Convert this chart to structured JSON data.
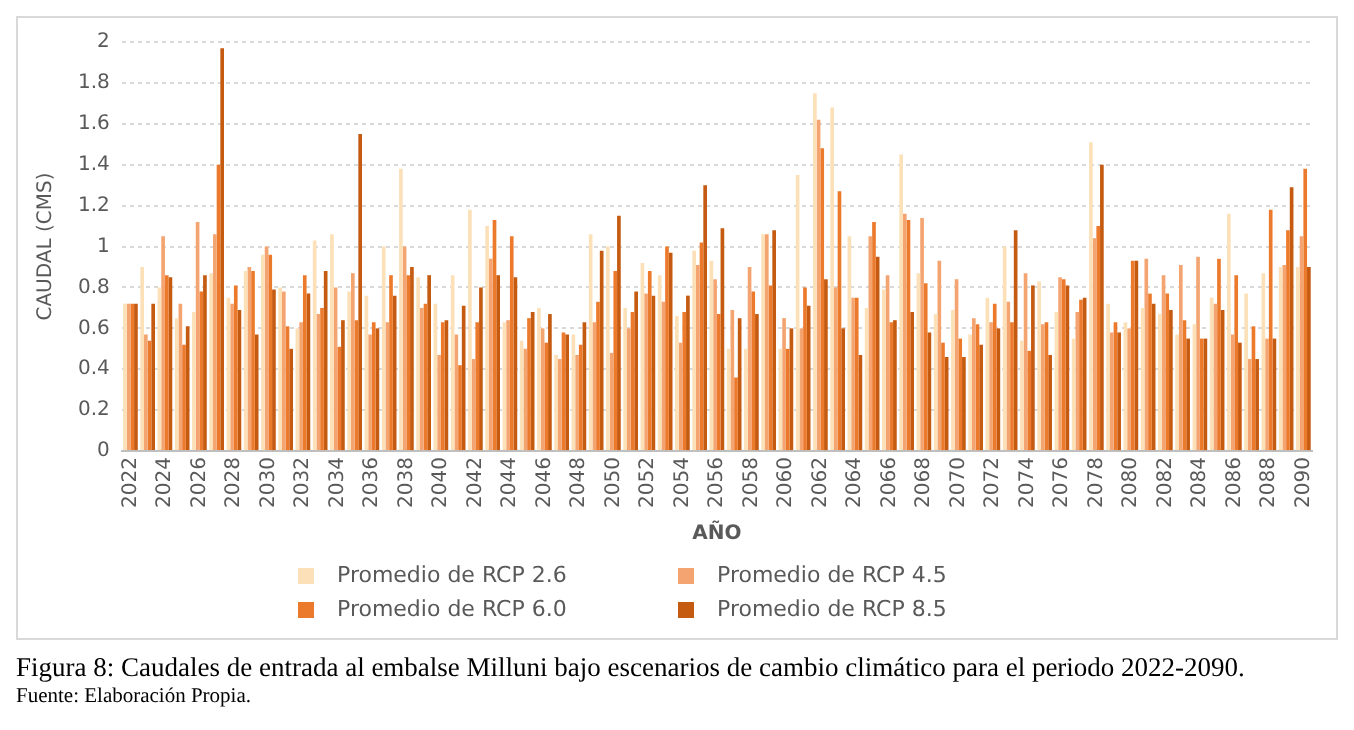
{
  "chart_data": {
    "type": "bar",
    "xlabel": "AÑO",
    "ylabel": "CAUDAL (CMS)",
    "categories": [
      "2022",
      null,
      "2024",
      null,
      "2026",
      null,
      "2028",
      null,
      "2030",
      null,
      "2032",
      null,
      "2034",
      null,
      "2036",
      null,
      "2038",
      null,
      "2040",
      null,
      "2042",
      null,
      "2044",
      null,
      "2046",
      null,
      "2048",
      null,
      "2050",
      null,
      "2052",
      null,
      "2054",
      null,
      "2056",
      null,
      "2058",
      null,
      "2060",
      null,
      "2062",
      null,
      "2064",
      null,
      "2066",
      null,
      "2068",
      null,
      "2070",
      null,
      "2072",
      null,
      "2074",
      null,
      "2076",
      null,
      "2078",
      null,
      "2080",
      null,
      "2082",
      null,
      "2084",
      null,
      "2086",
      null,
      "2088",
      null,
      "2090"
    ],
    "series": [
      {
        "name": "Promedio de RCP 2.6",
        "color": "#fbe0b8",
        "values": [
          0.72,
          0.9,
          0.8,
          0.65,
          0.68,
          0.87,
          0.75,
          0.88,
          0.96,
          0.8,
          0.6,
          1.03,
          1.06,
          0.78,
          0.76,
          1.0,
          1.38,
          0.85,
          0.72,
          0.86,
          1.18,
          1.1,
          0.63,
          0.54,
          0.7,
          0.47,
          0.57,
          1.06,
          1.0,
          0.7,
          0.92,
          0.86,
          0.66,
          0.98,
          0.93,
          0.5,
          0.5,
          1.06,
          0.5,
          1.35,
          1.75,
          1.68,
          1.05,
          0.7,
          0.79,
          1.45,
          0.87,
          0.67,
          0.69,
          0.57,
          0.75,
          1.0,
          0.54,
          0.83,
          0.68,
          0.55,
          1.51,
          0.72,
          0.63,
          0.7,
          0.67,
          0.57,
          0.62,
          0.75,
          1.16,
          0.77,
          0.87,
          0.9,
          0.9
        ]
      },
      {
        "name": "Promedio de RCP 4.5",
        "color": "#f4a470",
        "values": [
          0.72,
          0.57,
          1.05,
          0.72,
          1.12,
          1.06,
          0.72,
          0.9,
          1.0,
          0.78,
          0.63,
          0.67,
          0.8,
          0.87,
          0.57,
          0.63,
          1.0,
          0.7,
          0.47,
          0.57,
          0.45,
          0.94,
          0.64,
          0.5,
          0.6,
          0.45,
          0.47,
          0.63,
          0.48,
          0.6,
          0.77,
          0.73,
          0.53,
          0.91,
          0.84,
          0.69,
          0.9,
          1.06,
          0.65,
          0.6,
          1.62,
          0.8,
          0.75,
          1.05,
          0.86,
          1.16,
          1.14,
          0.93,
          0.84,
          0.65,
          0.63,
          0.73,
          0.87,
          0.62,
          0.85,
          0.68,
          1.04,
          0.58,
          0.6,
          0.94,
          0.86,
          0.91,
          0.95,
          0.72,
          0.57,
          0.45,
          0.55,
          0.91,
          1.05
        ]
      },
      {
        "name": "Promedio de RCP 6.0",
        "color": "#ec7a2c",
        "values": [
          0.72,
          0.54,
          0.86,
          0.52,
          0.78,
          1.4,
          0.81,
          0.88,
          0.96,
          0.61,
          0.86,
          0.7,
          0.51,
          0.64,
          0.63,
          0.86,
          0.86,
          0.72,
          0.63,
          0.42,
          0.63,
          1.13,
          1.05,
          0.65,
          0.53,
          0.58,
          0.52,
          0.73,
          0.88,
          0.68,
          0.88,
          1.0,
          0.68,
          1.02,
          0.67,
          0.36,
          0.78,
          0.81,
          0.5,
          0.8,
          1.48,
          1.27,
          0.75,
          1.12,
          0.63,
          1.13,
          0.82,
          0.53,
          0.55,
          0.62,
          0.72,
          0.63,
          0.49,
          0.63,
          0.84,
          0.74,
          1.1,
          0.63,
          0.93,
          0.77,
          0.77,
          0.64,
          0.55,
          0.94,
          0.86,
          0.61,
          1.18,
          1.08,
          1.38
        ]
      },
      {
        "name": "Promedio de RCP 8.5",
        "color": "#c55a11",
        "values": [
          0.72,
          0.72,
          0.85,
          0.61,
          0.86,
          1.97,
          0.69,
          0.57,
          0.79,
          0.5,
          0.77,
          0.88,
          0.64,
          1.55,
          0.6,
          0.76,
          0.9,
          0.86,
          0.64,
          0.71,
          0.8,
          0.86,
          0.85,
          0.68,
          0.67,
          0.57,
          0.63,
          0.98,
          1.15,
          0.78,
          0.76,
          0.97,
          0.76,
          1.3,
          1.09,
          0.65,
          0.67,
          1.08,
          0.6,
          0.71,
          0.84,
          0.6,
          0.47,
          0.95,
          0.64,
          0.68,
          0.58,
          0.46,
          0.46,
          0.52,
          0.6,
          1.08,
          0.81,
          0.47,
          0.81,
          0.75,
          1.4,
          0.58,
          0.93,
          0.72,
          0.69,
          0.55,
          0.55,
          0.69,
          0.53,
          0.45,
          0.55,
          1.29,
          0.9
        ]
      }
    ],
    "ylim": [
      0,
      2
    ],
    "yticks": [
      0,
      0.2,
      0.4,
      0.6,
      0.8,
      1,
      1.2,
      1.4,
      1.6,
      1.8,
      2
    ],
    "grid": "y",
    "legend": "bottom",
    "annotations": [
      "Figura 8: Caudales de entrada al embalse Milluni bajo escenarios de cambio climático para el periodo 2022-2090.",
      "Fuente: Elaboración Propia."
    ]
  }
}
